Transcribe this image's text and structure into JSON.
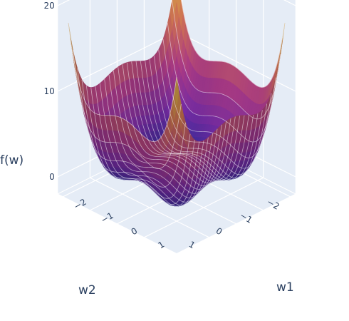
{
  "chart_data": {
    "type": "surface",
    "title": "",
    "x_axis": {
      "label": "w1",
      "ticks": [
        -2,
        -1,
        0,
        1
      ],
      "range": [
        -2.2,
        2.2
      ]
    },
    "y_axis": {
      "label": "w2",
      "ticks": [
        -2,
        -1,
        0,
        1
      ],
      "range": [
        -2.2,
        2.2
      ]
    },
    "z_axis": {
      "label": "f(w)",
      "ticks": [
        0,
        10,
        20
      ],
      "range": [
        -2,
        22
      ]
    },
    "function": "f(w) = (w1^2 - 1)^2 + (w2^2 - 1)^2",
    "z_range_of_surface": [
      0,
      18
    ],
    "contours": true,
    "colorscale": [
      "#2d2fa6",
      "#7e2fb0",
      "#b93f8f",
      "#e27c5a",
      "#f0c94a"
    ],
    "grid": true,
    "scene_background": "#e5ecf6"
  }
}
